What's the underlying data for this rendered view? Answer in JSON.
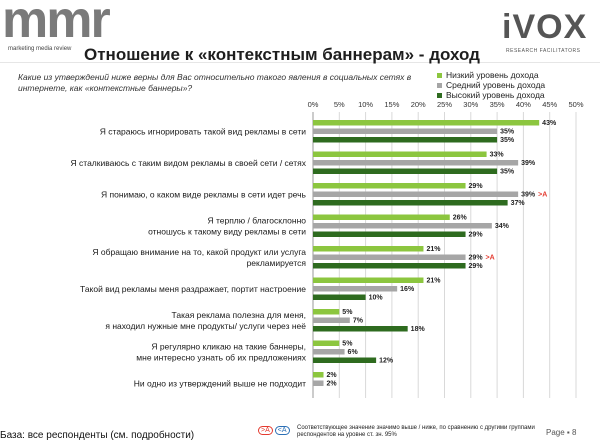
{
  "logos": {
    "mmr_word": "mmr",
    "mmr_tagline": "marketing media review",
    "ivox_word": "iVOX",
    "ivox_tagline": "RESEARCH FACILITATORS"
  },
  "title": "Отношение к «контекстным баннерам» - доход",
  "question": "Какие из утверждений ниже верны для Вас относительно такого явления в социальных сетях в интернете, как «контекстные баннеры»?",
  "colors": {
    "low": "#8cc63f",
    "mid": "#a6a6a6",
    "high": "#2e6b1f",
    "sig": "#e43a2f"
  },
  "footer": {
    "base": "База: все респонденты (см. подробности)",
    "sig_a": ">A",
    "sig_b": "<A",
    "note": "Соответствующее значение значимо выше / ниже, по сравнению с другими группами респондентов на уровне ст. зн. 95%",
    "page": "Page  ▪  8"
  },
  "chart_data": {
    "type": "bar",
    "orientation": "horizontal",
    "title": "Отношение к «контекстным баннерам» - доход",
    "xlim": [
      0,
      50
    ],
    "ticks": [
      "0%",
      "5%",
      "10%",
      "15%",
      "20%",
      "25%",
      "30%",
      "35%",
      "40%",
      "45%",
      "50%"
    ],
    "tick_values": [
      0,
      5,
      10,
      15,
      20,
      25,
      30,
      35,
      40,
      45,
      50
    ],
    "legend_position": "top-right",
    "categories": [
      "Я стараюсь игнорировать такой вид рекламы в сети",
      "Я сталкиваюсь с таким видом рекламы в своей сети / сетях",
      "Я понимаю, о каком виде рекламы в сети идет речь",
      "Я терплю / благосклонно отношусь к такому виду рекламы в сети",
      "Я обращаю внимание на то, какой продукт или услуга рекламируется",
      "Такой вид рекламы меня раздражает, портит настроение",
      "Такая реклама полезна для меня, я находил нужные мне продукты/ услуги через неё",
      "Я регулярно кликаю на такие баннеры, мне интересно узнать об их предложениях",
      "Ни одно из утверждений выше не подходит"
    ],
    "label_lines": [
      [
        "Я стараюсь игнорировать такой вид рекламы в сети"
      ],
      [
        "Я сталкиваюсь с таким видом рекламы в своей сети / сетях"
      ],
      [
        "Я понимаю, о каком виде рекламы в сети идет речь"
      ],
      [
        "Я терплю / благосклонно",
        "отношусь к такому виду рекламы в сети"
      ],
      [
        "Я обращаю внимание на то, какой продукт или услуга",
        "рекламируется"
      ],
      [
        "Такой вид рекламы меня раздражает, портит настроение"
      ],
      [
        "Такая реклама полезна для меня,",
        "я находил нужные мне продукты/ услуги через неё"
      ],
      [
        "Я регулярно кликаю на такие баннеры,",
        "мне интересно узнать об их предложениях"
      ],
      [
        "Ни одно из утверждений выше не подходит"
      ]
    ],
    "series": [
      {
        "name": "Низкий уровень дохода",
        "key": "low",
        "values": [
          43,
          33,
          29,
          26,
          21,
          21,
          5,
          5,
          2
        ]
      },
      {
        "name": "Средний уровень дохода",
        "key": "mid",
        "values": [
          35,
          39,
          39,
          34,
          29,
          16,
          7,
          6,
          2
        ]
      },
      {
        "name": "Высокий уровень дохода",
        "key": "high",
        "values": [
          35,
          35,
          37,
          29,
          29,
          10,
          18,
          12,
          null
        ]
      }
    ],
    "significance": [
      {
        "category_index": 2,
        "series_index": 1,
        "label": ">A"
      },
      {
        "category_index": 4,
        "series_index": 1,
        "label": ">A"
      }
    ]
  }
}
